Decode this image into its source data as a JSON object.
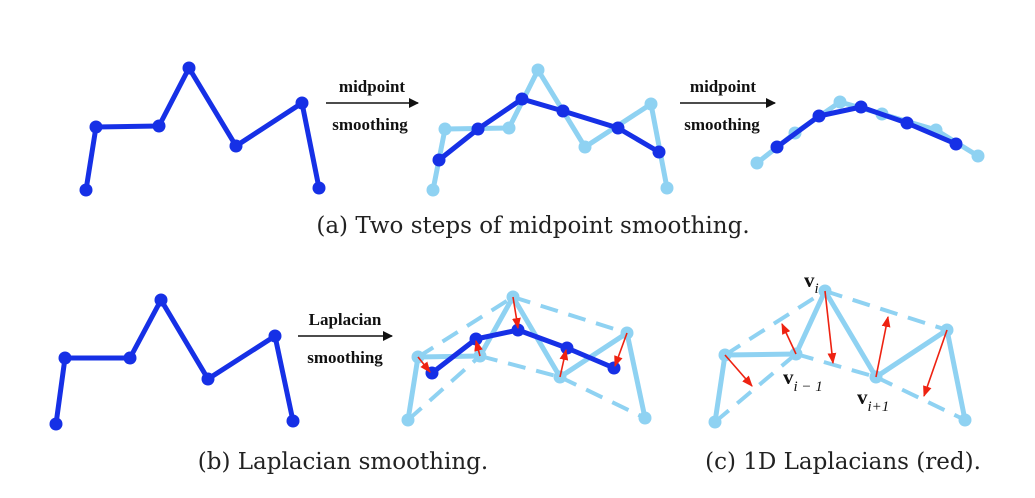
{
  "colors": {
    "dark_blue": "#1630e6",
    "light_blue": "#8fd2f2",
    "red": "#ee2211",
    "black": "#111111"
  },
  "captions": {
    "a": "(a) Two steps of midpoint smoothing.",
    "b": "(b) Laplacian smoothing.",
    "c": "(c) 1D Laplacians (red)."
  },
  "arrows": {
    "a1": {
      "top": "midpoint",
      "bottom": "smoothing"
    },
    "a2": {
      "top": "midpoint",
      "bottom": "smoothing"
    },
    "b1": {
      "top": "Laplacian",
      "bottom": "smoothing"
    }
  },
  "vertex_labels": {
    "vi": {
      "main": "v",
      "sub": "i"
    },
    "vim1": {
      "main": "v",
      "sub": "i − 1"
    },
    "vip1": {
      "main": "v",
      "sub": "i+1"
    }
  }
}
